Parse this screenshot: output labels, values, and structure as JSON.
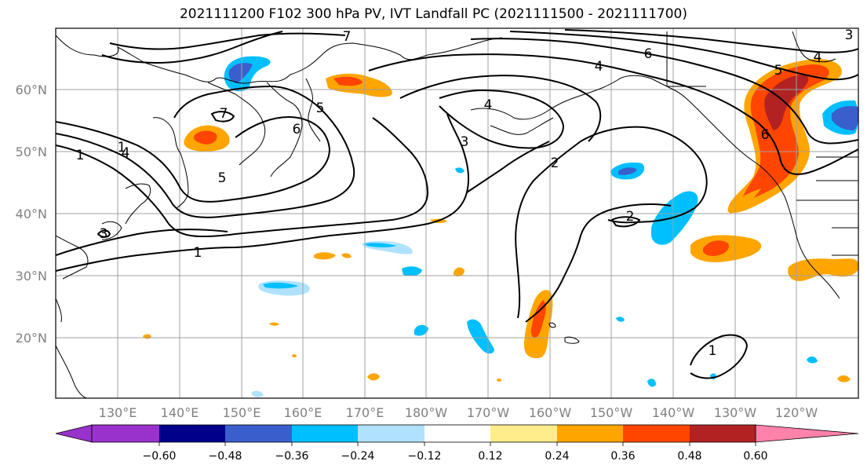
{
  "title": "2021111200 F102 300 hPa PV, IVT Landfall PC (2021111500 - 2021111700)",
  "lat_ticks": [
    "60°N",
    "50°N",
    "40°N",
    "30°N",
    "20°N"
  ],
  "lon_ticks": [
    "130°E",
    "140°E",
    "150°E",
    "160°E",
    "170°E",
    "180°W",
    "170°W",
    "160°W",
    "150°W",
    "140°W",
    "130°W",
    "120°W"
  ],
  "colorbar": {
    "ticks": [
      "−0.60",
      "−0.48",
      "−0.36",
      "−0.24",
      "−0.12",
      "0.12",
      "0.24",
      "0.36",
      "0.48",
      "0.60"
    ],
    "colors": [
      "#9932cc",
      "#00008b",
      "#3a5fcd",
      "#00bfff",
      "#b0e2ff",
      "#ffffff",
      "#ffec8b",
      "#ffa500",
      "#ff4500",
      "#b22222",
      "#ff82ab"
    ]
  },
  "contour_labels": [
    "7",
    "1",
    "4",
    "6",
    "4",
    "7",
    "5",
    "6",
    "1",
    "1",
    "5",
    "3",
    "4",
    "3",
    "2",
    "2",
    "3",
    "1",
    "6",
    "4",
    "5"
  ]
}
